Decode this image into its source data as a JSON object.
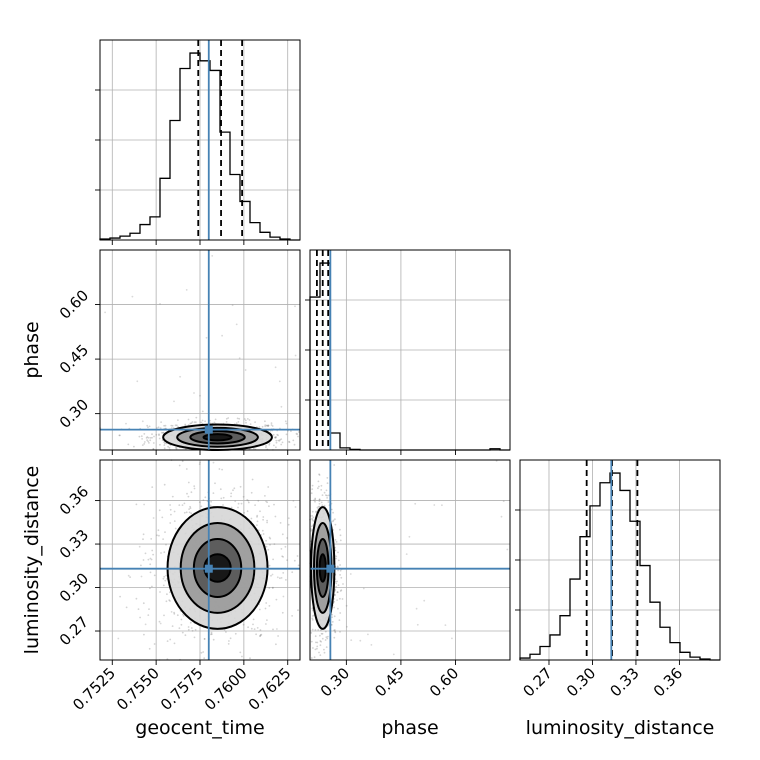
{
  "chart_data": {
    "type": "corner",
    "parameters": [
      "geocent_time",
      "phase",
      "luminosity_distance"
    ],
    "ranges": {
      "geocent_time": [
        0.7518,
        0.7632
      ],
      "phase": [
        0.2,
        0.75
      ],
      "luminosity_distance": [
        0.25,
        0.388
      ]
    },
    "ticks": {
      "geocent_time": [
        "0.7525",
        "0.7550",
        "0.7575",
        "0.7600",
        "0.7625"
      ],
      "phase": [
        "0.30",
        "0.45",
        "0.60"
      ],
      "luminosity_distance": [
        "0.27",
        "0.30",
        "0.33",
        "0.36"
      ]
    },
    "truths": {
      "geocent_time": 0.758,
      "phase": 0.256,
      "luminosity_distance": 0.313
    },
    "quantiles": {
      "geocent_time": [
        0.7574,
        0.7587,
        0.7599
      ],
      "phase": [
        0.219,
        0.235,
        0.25
      ],
      "luminosity_distance": [
        0.296,
        0.3135,
        0.331
      ]
    },
    "marginals": {
      "geocent_time": {
        "bin_edges": [
          0.7518,
          0.75237,
          0.75294,
          0.75351,
          0.75408,
          0.75465,
          0.75522,
          0.75579,
          0.75636,
          0.75693,
          0.7575,
          0.75807,
          0.75864,
          0.75921,
          0.75978,
          0.76035,
          0.76092,
          0.76149,
          0.76206,
          0.76263,
          0.7632
        ],
        "counts": [
          0.005,
          0.01,
          0.02,
          0.035,
          0.08,
          0.12,
          0.32,
          0.62,
          0.89,
          0.97,
          0.93,
          0.88,
          0.56,
          0.34,
          0.2,
          0.09,
          0.04,
          0.015,
          0.005,
          0.0
        ]
      },
      "phase": {
        "bin_edges": [
          0.2,
          0.2275,
          0.255,
          0.2825,
          0.31,
          0.3375,
          0.365,
          0.3925,
          0.42,
          0.4475,
          0.475,
          0.5025,
          0.53,
          0.5575,
          0.585,
          0.6125,
          0.64,
          0.6675,
          0.695,
          0.7225,
          0.75
        ],
        "counts": [
          0.72,
          0.88,
          0.08,
          0.01,
          0.003,
          0.0,
          0.0,
          0.0,
          0.0,
          0.0,
          0.0,
          0.0,
          0.0,
          0.0,
          0.0,
          0.0,
          0.0,
          0.0,
          0.006,
          0.0
        ]
      },
      "luminosity_distance": {
        "bin_edges": [
          0.25,
          0.2569,
          0.2638,
          0.2707,
          0.2776,
          0.2845,
          0.2914,
          0.2983,
          0.3052,
          0.3121,
          0.319,
          0.3259,
          0.3328,
          0.3397,
          0.3466,
          0.3535,
          0.3604,
          0.3673,
          0.3742,
          0.3811,
          0.388
        ],
        "counts": [
          0.01,
          0.03,
          0.07,
          0.13,
          0.23,
          0.42,
          0.64,
          0.8,
          0.92,
          0.97,
          0.88,
          0.72,
          0.49,
          0.3,
          0.17,
          0.09,
          0.04,
          0.015,
          0.005,
          0.0
        ]
      }
    },
    "pairs": [
      {
        "x": "geocent_time",
        "y": "phase",
        "center": [
          0.7585,
          0.235
        ],
        "contour_semi_axes": [
          [
            0.0008,
            0.0085
          ],
          [
            0.00155,
            0.017
          ],
          [
            0.0023,
            0.026
          ],
          [
            0.0031,
            0.035
          ]
        ]
      },
      {
        "x": "geocent_time",
        "y": "luminosity_distance",
        "center": [
          0.7585,
          0.3135
        ],
        "contour_semi_axes": [
          [
            0.00075,
            0.0095
          ],
          [
            0.00135,
            0.02
          ],
          [
            0.0021,
            0.031
          ],
          [
            0.00285,
            0.042
          ]
        ]
      },
      {
        "x": "phase",
        "y": "luminosity_distance",
        "center": [
          0.235,
          0.3135
        ],
        "contour_semi_axes": [
          [
            0.0085,
            0.0095
          ],
          [
            0.016,
            0.02
          ],
          [
            0.024,
            0.031
          ],
          [
            0.032,
            0.042
          ]
        ]
      }
    ],
    "grid": true,
    "colors": {
      "truth": "#4682b4",
      "hist": "#000000",
      "contour": "#000000",
      "scatter": "#808080"
    }
  }
}
